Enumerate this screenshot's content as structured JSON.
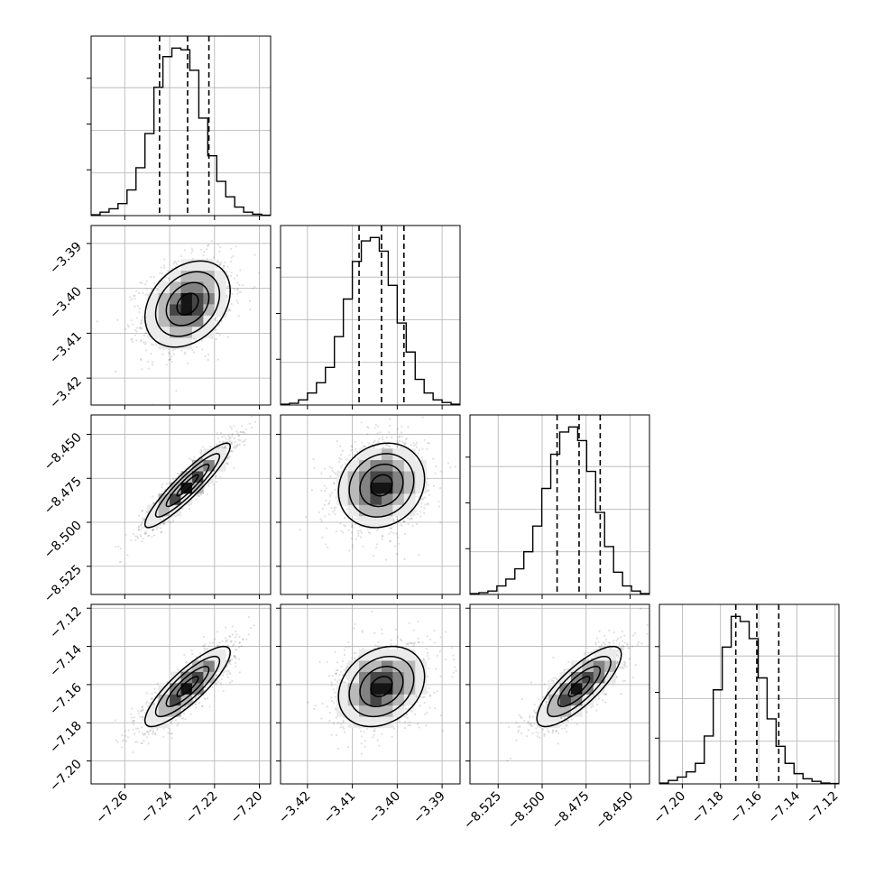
{
  "chart_data": {
    "type": "corner",
    "n_params": 4,
    "grid": true,
    "parameters": [
      {
        "range": [
          -7.275,
          -7.195
        ],
        "ticks": [
          -7.26,
          -7.24,
          -7.22,
          -7.2
        ],
        "tick_labels": [
          "−7.26",
          "−7.24",
          "−7.22",
          "−7.20"
        ],
        "center": -7.232,
        "sigma": 0.0095,
        "quantiles": [
          -7.2445,
          -7.232,
          -7.2225
        ],
        "hist_counts": [
          0.5,
          2,
          4,
          7,
          15,
          28,
          48,
          75,
          93,
          98,
          97,
          85,
          57,
          35,
          20,
          11,
          5,
          2,
          0.8,
          0.2
        ],
        "hist_max": 105
      },
      {
        "range": [
          -3.426,
          -3.386
        ],
        "ticks": [
          -3.42,
          -3.41,
          -3.4,
          -3.39
        ],
        "tick_labels": [
          "−3.42",
          "−3.41",
          "−3.40",
          "−3.39"
        ],
        "center": -3.4035,
        "sigma": 0.0048,
        "quantiles": [
          -3.4085,
          -3.4035,
          -3.3985
        ],
        "hist_counts": [
          0.5,
          1,
          3,
          7,
          13,
          22,
          40,
          62,
          84,
          96,
          98,
          90,
          70,
          48,
          31,
          15,
          7,
          3,
          1.5,
          0.5
        ],
        "hist_max": 105
      },
      {
        "range": [
          -8.541,
          -8.439
        ],
        "ticks": [
          -8.525,
          -8.5,
          -8.475,
          -8.45
        ],
        "tick_labels": [
          "−8.525",
          "−8.500",
          "−8.475",
          "−8.450"
        ],
        "center": -8.479,
        "sigma": 0.012,
        "quantiles": [
          -8.4915,
          -8.479,
          -8.467
        ],
        "hist_counts": [
          0.5,
          1,
          2,
          5,
          9,
          15,
          25,
          40,
          62,
          82,
          95,
          98,
          90,
          72,
          48,
          28,
          13,
          5,
          2,
          0.5
        ],
        "hist_max": 105
      },
      {
        "range": [
          -7.212,
          -7.118
        ],
        "ticks": [
          -7.2,
          -7.18,
          -7.16,
          -7.14,
          -7.12
        ],
        "tick_labels": [
          "−7.20",
          "−7.18",
          "−7.16",
          "−7.14",
          "−7.12"
        ],
        "center": -7.161,
        "sigma": 0.0105,
        "quantiles": [
          -7.172,
          -7.161,
          -7.1495
        ],
        "hist_counts": [
          0.5,
          2,
          4,
          7,
          12,
          28,
          55,
          80,
          98,
          95,
          85,
          62,
          38,
          22,
          12,
          6,
          3,
          1.5,
          0.5,
          0.2
        ],
        "hist_max": 105
      }
    ],
    "correlations": {
      "1-0": 0.3,
      "2-0": 0.92,
      "2-1": 0.15,
      "3-0": 0.85,
      "3-1": 0.25,
      "3-2": 0.8
    },
    "contour_levels_sigma": [
      0.5,
      1.0,
      1.5,
      2.0
    ],
    "sample_color": "#555555",
    "line_color": "#000000"
  }
}
